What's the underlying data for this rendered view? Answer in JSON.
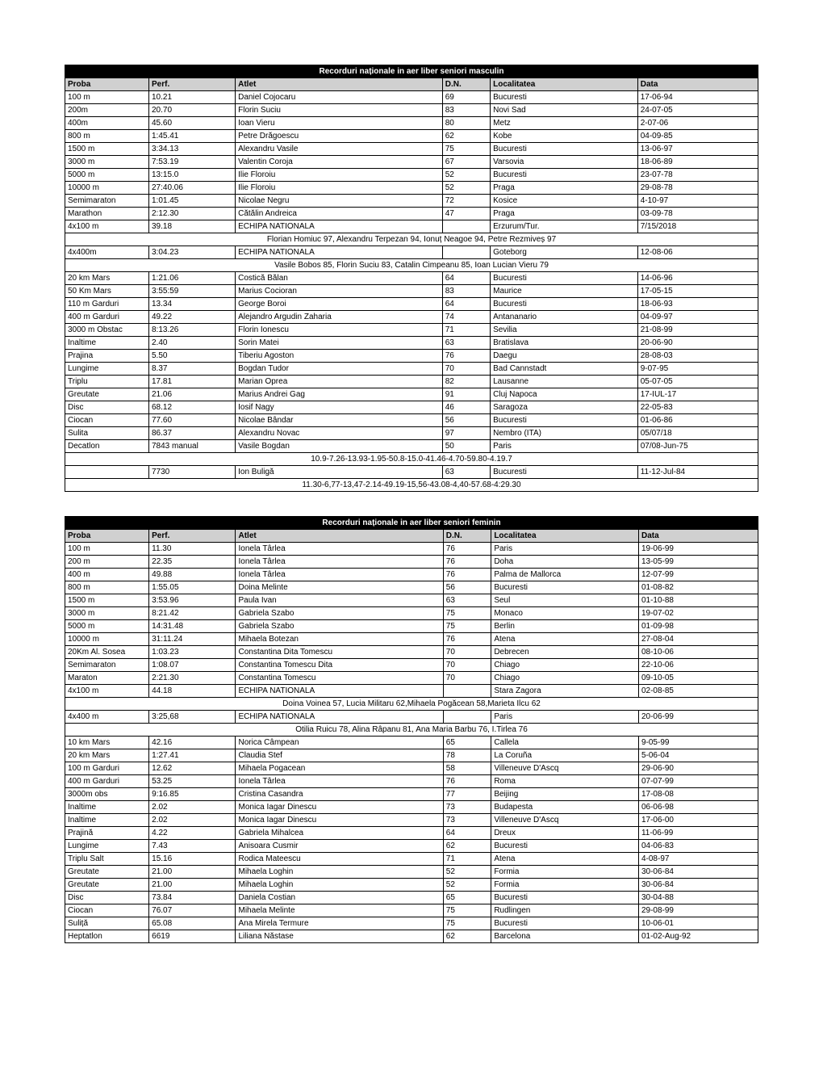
{
  "tables": [
    {
      "title": "Recorduri naționale in aer liber seniori masculin",
      "columns": [
        "Proba",
        "Perf.",
        "Atlet",
        "D.N.",
        "Localitatea",
        "Data"
      ],
      "rows": [
        {
          "type": "data",
          "cells": [
            "100 m",
            "10.21",
            "Daniel Cojocaru",
            "69",
            "Bucuresti",
            "17-06-94"
          ]
        },
        {
          "type": "data",
          "cells": [
            "200m",
            "20.70",
            "Florin Suciu",
            "83",
            "Novi Sad",
            "24-07-05"
          ]
        },
        {
          "type": "data",
          "cells": [
            "400m",
            "45.60",
            "Ioan Vieru",
            "80",
            "Metz",
            "2-07-06"
          ]
        },
        {
          "type": "data",
          "cells": [
            "800 m",
            "1:45.41",
            "Petre Drăgoescu",
            "62",
            "Kobe",
            "04-09-85"
          ]
        },
        {
          "type": "data",
          "cells": [
            "1500 m",
            "3:34.13",
            "Alexandru Vasile",
            "75",
            "Bucuresti",
            "13-06-97"
          ]
        },
        {
          "type": "data",
          "cells": [
            "3000 m",
            "7:53.19",
            "Valentin Coroja",
            "67",
            "Varsovia",
            "18-06-89"
          ]
        },
        {
          "type": "data",
          "cells": [
            "5000 m",
            "13:15.0",
            "Ilie Floroiu",
            "52",
            "Bucuresti",
            "23-07-78"
          ]
        },
        {
          "type": "data",
          "cells": [
            "10000 m",
            "27:40.06",
            "Ilie Floroiu",
            "52",
            "Praga",
            "29-08-78"
          ]
        },
        {
          "type": "data",
          "cells": [
            "Semimaraton",
            "1:01.45",
            "Nicolae Negru",
            "72",
            "Kosice",
            "4-10-97"
          ]
        },
        {
          "type": "data",
          "cells": [
            "Marathon",
            "2:12.30",
            "Cătălin Andreica",
            "47",
            "Praga",
            "03-09-78"
          ]
        },
        {
          "type": "data",
          "cells": [
            "4x100 m",
            "39.18",
            "ECHIPA NATIONALA",
            "",
            "Erzurum/Tur.",
            "7/15/2018"
          ]
        },
        {
          "type": "sub",
          "text": "Florian Homiuc 97, Alexandru Terpezan 94, Ionuț Neagoe 94, Petre Rezmiveș 97"
        },
        {
          "type": "data",
          "cells": [
            "4x400m",
            "3:04.23",
            "ECHIPA NATIONALA",
            "",
            "Goteborg",
            "12-08-06"
          ]
        },
        {
          "type": "sub",
          "text": "Vasile Bobos 85, Florin Suciu 83, Catalin Cimpeanu 85, Ioan Lucian Vieru 79"
        },
        {
          "type": "data",
          "cells": [
            "20 km Mars",
            "1:21.06",
            "Costică Bălan",
            "64",
            "Bucuresti",
            "14-06-96"
          ]
        },
        {
          "type": "data",
          "cells": [
            "50 Km Mars",
            "3:55:59",
            "Marius Cocioran",
            "83",
            "Maurice",
            "17-05-15"
          ]
        },
        {
          "type": "data",
          "cells": [
            "110 m Garduri",
            "13.34",
            "George Boroi",
            "64",
            "Bucuresti",
            "18-06-93"
          ]
        },
        {
          "type": "data",
          "cells": [
            "400 m Garduri",
            "49.22",
            "Alejandro Argudin Zaharia",
            "74",
            "Antananario",
            "04-09-97"
          ]
        },
        {
          "type": "data",
          "cells": [
            "3000 m Obstac",
            "8:13.26",
            "Florin Ionescu",
            "71",
            "Sevilia",
            "21-08-99"
          ]
        },
        {
          "type": "data",
          "cells": [
            "Inaltime",
            "2.40",
            "Sorin Matei",
            "63",
            "Bratislava",
            "20-06-90"
          ]
        },
        {
          "type": "data",
          "cells": [
            "Prajina",
            "5.50",
            "Tiberiu Agoston",
            "76",
            "Daegu",
            "28-08-03"
          ]
        },
        {
          "type": "data",
          "cells": [
            "Lungime",
            "8.37",
            "Bogdan Tudor",
            "70",
            "Bad Cannstadt",
            "9-07-95"
          ]
        },
        {
          "type": "data",
          "cells": [
            "Triplu",
            "17.81",
            "Marian Oprea",
            "82",
            "Lausanne",
            "05-07-05"
          ]
        },
        {
          "type": "data",
          "cells": [
            "Greutate",
            "21.06",
            "Marius Andrei Gag",
            "91",
            "Cluj Napoca",
            "17-IUL-17"
          ]
        },
        {
          "type": "data",
          "cells": [
            "Disc",
            "68.12",
            "Iosif Nagy",
            "46",
            "Saragoza",
            "22-05-83"
          ]
        },
        {
          "type": "data",
          "cells": [
            "Ciocan",
            "77.60",
            "Nicolae Bândar",
            "56",
            "Bucuresti",
            "01-06-86"
          ]
        },
        {
          "type": "data",
          "cells": [
            "Sulita",
            "86.37",
            "Alexandru Novac",
            "97",
            "Nembro (ITA)",
            "05/07/18"
          ]
        },
        {
          "type": "data",
          "cells": [
            "Decatlon",
            "7843 manual",
            "Vasile Bogdan",
            "50",
            "Paris",
            "07/08-Jun-75"
          ]
        },
        {
          "type": "sub",
          "text": "10.9-7.26-13.93-1.95-50.8-15.0-41.46-4.70-59.80-4.19.7"
        },
        {
          "type": "data",
          "cells": [
            "",
            "7730",
            "Ion Buligă",
            "63",
            "Bucuresti",
            "11-12-Jul-84"
          ]
        },
        {
          "type": "sub",
          "text": "11.30-6,77-13,47-2.14-49.19-15,56-43.08-4,40-57.68-4:29.30"
        }
      ]
    },
    {
      "title": "Recorduri naționale in aer liber seniori feminin",
      "columns": [
        "Proba",
        "Perf.",
        "Atlet",
        "D.N.",
        "Localitatea",
        "Data"
      ],
      "rows": [
        {
          "type": "data",
          "cells": [
            "100 m",
            "11.30",
            "Ionela Târlea",
            "76",
            "Paris",
            "19-06-99"
          ]
        },
        {
          "type": "data",
          "cells": [
            "200 m",
            "22.35",
            "Ionela Târlea",
            "76",
            "Doha",
            "13-05-99"
          ]
        },
        {
          "type": "data",
          "cells": [
            "400 m",
            "49.88",
            "Ionela Târlea",
            "76",
            "Palma de Mallorca",
            "12-07-99"
          ]
        },
        {
          "type": "data",
          "cells": [
            "800 m",
            "1:55.05",
            "Doina Melinte",
            "56",
            "Bucuresti",
            "01-08-82"
          ]
        },
        {
          "type": "data",
          "cells": [
            "1500 m",
            "3:53.96",
            "Paula Ivan",
            "63",
            "Seul",
            "01-10-88"
          ]
        },
        {
          "type": "data",
          "cells": [
            "3000 m",
            "8:21.42",
            "Gabriela Szabo",
            "75",
            "Monaco",
            "19-07-02"
          ]
        },
        {
          "type": "data",
          "cells": [
            "5000 m",
            "14:31.48",
            "Gabriela Szabo",
            "75",
            "Berlin",
            "01-09-98"
          ]
        },
        {
          "type": "data",
          "cells": [
            "10000 m",
            "31:11.24",
            "Mihaela Botezan",
            "76",
            "Atena",
            "27-08-04"
          ]
        },
        {
          "type": "data",
          "cells": [
            "20Km Al. Sosea",
            "1:03.23",
            "Constantina Dita Tomescu",
            "70",
            "Debrecen",
            "08-10-06"
          ]
        },
        {
          "type": "data",
          "cells": [
            "Semimaraton",
            "1:08.07",
            "Constantina Tomescu Dita",
            "70",
            "Chiago",
            "22-10-06"
          ]
        },
        {
          "type": "data",
          "cells": [
            "Maraton",
            "2:21.30",
            "Constantina Tomescu",
            "70",
            "Chiago",
            "09-10-05"
          ]
        },
        {
          "type": "data",
          "cells": [
            "4x100 m",
            "44.18",
            "ECHIPA NATIONALA",
            "",
            "Stara Zagora",
            "02-08-85"
          ]
        },
        {
          "type": "sub",
          "text": "Doina Voinea 57, Lucia Militaru 62,Mihaela Pogăcean 58,Marieta Ilcu 62"
        },
        {
          "type": "data",
          "cells": [
            "4x400 m",
            "3:25,68",
            "ECHIPA NATIONALA",
            "",
            "Paris",
            "20-06-99"
          ]
        },
        {
          "type": "sub",
          "text": "Otilia Ruicu 78, Alina Râpanu 81, Ana Maria Barbu 76, I.Tirlea 76"
        },
        {
          "type": "data",
          "cells": [
            "10 km Mars",
            "42.16",
            "Norica Câmpean",
            "65",
            "Callela",
            "9-05-99"
          ]
        },
        {
          "type": "data",
          "cells": [
            "20 km Mars",
            "1:27.41",
            "Claudia Stef",
            "78",
            "La Coruña",
            "5-06-04"
          ]
        },
        {
          "type": "data",
          "cells": [
            "100 m Garduri",
            "12.62",
            "Mihaela Pogacean",
            "58",
            "Villeneuve D'Ascq",
            "29-06-90"
          ]
        },
        {
          "type": "data",
          "cells": [
            "400 m Garduri",
            "53.25",
            "Ionela Târlea",
            "76",
            "Roma",
            "07-07-99"
          ]
        },
        {
          "type": "data",
          "cells": [
            "3000m obs",
            "9:16.85",
            "Cristina Casandra",
            "77",
            "Beijing",
            "17-08-08"
          ]
        },
        {
          "type": "data",
          "cells": [
            "Inaltime",
            "2.02",
            "Monica Iagar Dinescu",
            "73",
            "Budapesta",
            "06-06-98"
          ]
        },
        {
          "type": "data",
          "cells": [
            "Inaltime",
            "2.02",
            "Monica Iagar Dinescu",
            "73",
            "Villeneuve D'Ascq",
            "17-06-00"
          ]
        },
        {
          "type": "data",
          "cells": [
            "Prajină",
            "4.22",
            "Gabriela Mihalcea",
            "64",
            "Dreux",
            "11-06-99"
          ]
        },
        {
          "type": "data",
          "cells": [
            "Lungime",
            "7.43",
            "Anisoara Cusmir",
            "62",
            "Bucuresti",
            "04-06-83"
          ]
        },
        {
          "type": "data",
          "cells": [
            "Triplu Salt",
            "15.16",
            "Rodica Mateescu",
            "71",
            "Atena",
            "4-08-97"
          ]
        },
        {
          "type": "data",
          "cells": [
            "Greutate",
            "21.00",
            "Mihaela Loghin",
            "52",
            "Formia",
            "30-06-84"
          ]
        },
        {
          "type": "data",
          "cells": [
            "Greutate",
            "21.00",
            "Mihaela Loghin",
            "52",
            "Formia",
            "30-06-84"
          ]
        },
        {
          "type": "data",
          "cells": [
            "Disc",
            "73.84",
            "Daniela Costian",
            "65",
            "Bucuresti",
            "30-04-88"
          ]
        },
        {
          "type": "data",
          "cells": [
            "Ciocan",
            "76.07",
            "Mihaela Melinte",
            "75",
            "Rudlingen",
            "29-08-99"
          ]
        },
        {
          "type": "data",
          "cells": [
            "Suliță",
            "65.08",
            "Ana Mirela Termure",
            "75",
            "Bucuresti",
            "10-06-01"
          ]
        },
        {
          "type": "data",
          "cells": [
            "Heptatlon",
            "6619",
            "Liliana Năstase",
            "62",
            "Barcelona",
            "01-02-Aug-92"
          ]
        }
      ]
    }
  ],
  "colors": {
    "title_bg": "#000000",
    "title_fg": "#ffffff",
    "header_bg": "#d0d0d0",
    "border": "#000000",
    "bg": "#ffffff"
  }
}
